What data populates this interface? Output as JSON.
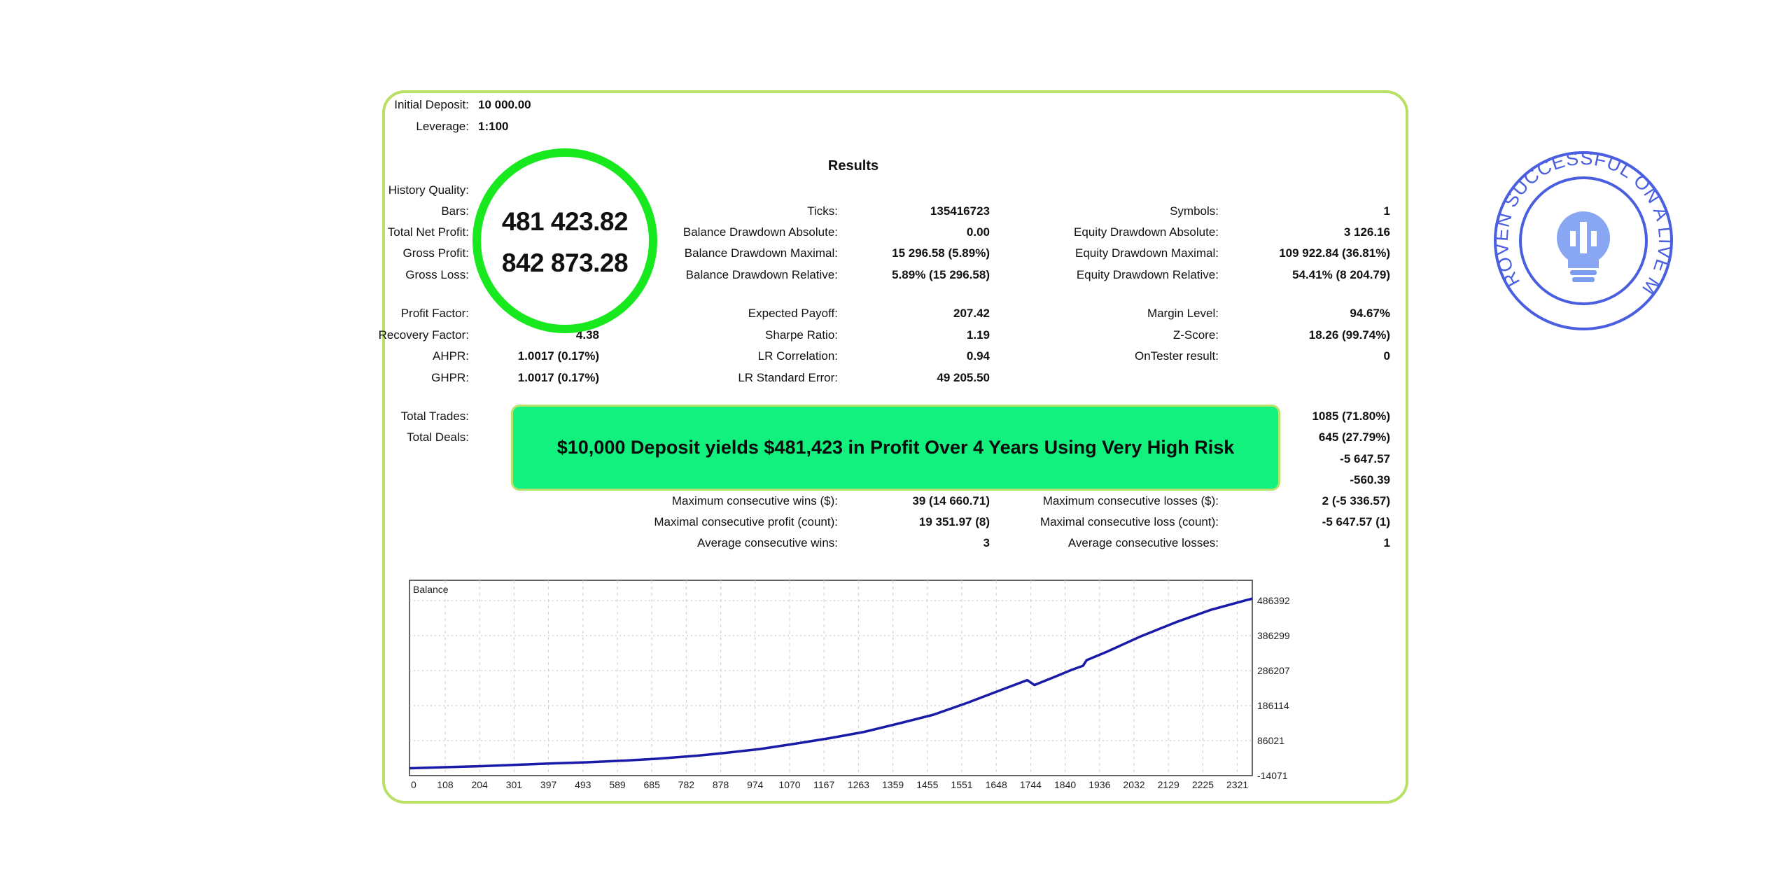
{
  "rows": [
    {
      "c1_label": "Initial Deposit:",
      "c1_value": "10 000.00"
    },
    {
      "c1_label": "Leverage:",
      "c1_value": "1:100"
    },
    {
      "c1_label": "History Quality:"
    },
    {
      "c1_label": "Bars:",
      "c2_label": "Ticks:",
      "c2_value": "135416723",
      "c3_label": "Symbols:",
      "c3_value": "1"
    },
    {
      "c1_label": "Total Net Profit:",
      "c2_label": "Balance Drawdown Absolute:",
      "c2_value": "0.00",
      "c3_label": "Equity Drawdown Absolute:",
      "c3_value": "3 126.16"
    },
    {
      "c1_label": "Gross Profit:",
      "c2_label": "Balance Drawdown Maximal:",
      "c2_value": "15 296.58 (5.89%)",
      "c3_label": "Equity Drawdown Maximal:",
      "c3_value": "109 922.84 (36.81%)"
    },
    {
      "c1_label": "Gross Loss:",
      "c2_label": "Balance Drawdown Relative:",
      "c2_value": "5.89% (15 296.58)",
      "c3_label": "Equity Drawdown Relative:",
      "c3_value": "54.41% (8 204.79)"
    },
    {
      "c1_label": "Profit Factor:",
      "c2_label": "Expected Payoff:",
      "c2_value": "207.42",
      "c3_label": "Margin Level:",
      "c3_value": "94.67%"
    },
    {
      "c1_label": "Recovery Factor:",
      "c1_value": "4.38",
      "c2_label": "Sharpe Ratio:",
      "c2_value": "1.19",
      "c3_label": "Z-Score:",
      "c3_value": "18.26 (99.74%)"
    },
    {
      "c1_label": "AHPR:",
      "c1_value": "1.0017 (0.17%)",
      "c2_label": "LR Correlation:",
      "c2_value": "0.94",
      "c3_label": "OnTester result:",
      "c3_value": "0"
    },
    {
      "c1_label": "GHPR:",
      "c1_value": "1.0017 (0.17%)",
      "c2_label": "LR Standard Error:",
      "c2_value": "49 205.50"
    },
    {
      "c1_label": "Total Trades:",
      "c3_value": "1085 (71.80%)"
    },
    {
      "c1_label": "Total Deals:",
      "c3_value": "645 (27.79%)"
    },
    {
      "c3_value": "-5 647.57"
    },
    {
      "c3_value": "-560.39"
    },
    {
      "c2_label": "Maximum consecutive wins ($):",
      "c2_value": "39 (14 660.71)",
      "c3_label": "Maximum consecutive losses ($):",
      "c3_value": "2 (-5 336.57)"
    },
    {
      "c2_label": "Maximal consecutive profit (count):",
      "c2_value": "19 351.97 (8)",
      "c3_label": "Maximal consecutive loss (count):",
      "c3_value": "-5 647.57 (1)"
    },
    {
      "c2_label": "Average consecutive wins:",
      "c2_value": "3",
      "c3_label": "Average consecutive losses:",
      "c3_value": "1"
    }
  ],
  "results_title": "Results",
  "highlight": {
    "net_profit": "481 423.82",
    "gross_profit": "842 873.28",
    "ring_color": "#18e81e"
  },
  "banner": {
    "text": "$10,000 Deposit yields $481,423 in Profit Over 4 Years Using Very High Risk",
    "color": "#12f07e"
  },
  "stamp": {
    "text": "PROVEN SUCCESSFUL ON A LIVE MONEY ACCOUNT",
    "icon": "lightbulb-candlestick-icon",
    "color": "#4a5ee0"
  },
  "chart_data": {
    "type": "line",
    "title": "Balance",
    "x_ticks": [
      0,
      108,
      204,
      301,
      397,
      493,
      589,
      685,
      782,
      878,
      974,
      1070,
      1167,
      1263,
      1359,
      1455,
      1551,
      1648,
      1744,
      1840,
      1936,
      2032,
      2129,
      2225,
      2321
    ],
    "y_ticks": [
      -14071,
      86021,
      186114,
      286207,
      386299,
      486392
    ],
    "xlim": [
      0,
      2340
    ],
    "ylim": [
      -14071,
      544450
    ],
    "grid": true,
    "series": [
      {
        "color": "#1a1aa8",
        "x": [
          0,
          100,
          200,
          301,
          400,
          493,
          600,
          685,
          800,
          878,
          974,
          1070,
          1167,
          1263,
          1359,
          1455,
          1551,
          1648,
          1715,
          1735,
          1800,
          1840,
          1870,
          1880,
          1936,
          2032,
          2129,
          2225,
          2321,
          2340
        ],
        "y": [
          7000,
          10000,
          13000,
          17000,
          21000,
          24000,
          29000,
          34000,
          43000,
          51000,
          62000,
          77000,
          93000,
          111000,
          135000,
          160000,
          195000,
          233000,
          259000,
          245000,
          272000,
          289000,
          300000,
          316000,
          340000,
          385000,
          425000,
          460000,
          487000,
          492000
        ]
      }
    ]
  }
}
